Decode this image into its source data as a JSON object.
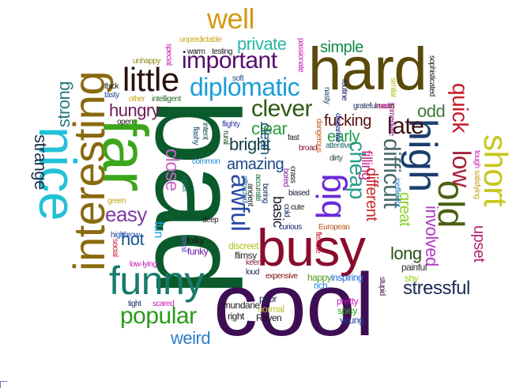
{
  "word_cloud": {
    "words": [
      {
        "text": "bad",
        "color": "#0b5a2b"
      },
      {
        "text": "cool",
        "color": "#3e0e55"
      },
      {
        "text": "hard",
        "color": "#5a4a0a"
      },
      {
        "text": "busy",
        "color": "#8a0c2c"
      },
      {
        "text": "interesting",
        "color": "#8a6a10"
      },
      {
        "text": "far",
        "color": "#3ca61a"
      },
      {
        "text": "nice",
        "color": "#22c1d6"
      },
      {
        "text": "funny",
        "color": "#177a6c"
      },
      {
        "text": "high",
        "color": "#1a3f6e"
      },
      {
        "text": "old",
        "color": "#4a6010"
      },
      {
        "text": "short",
        "color": "#c7c71b"
      },
      {
        "text": "big",
        "color": "#6a2ad8"
      },
      {
        "text": "little",
        "color": "#2a1010"
      },
      {
        "text": "important",
        "color": "#540e6e"
      },
      {
        "text": "diplomatic",
        "color": "#1c9ed8"
      },
      {
        "text": "well",
        "color": "#d49a14"
      },
      {
        "text": "private",
        "color": "#2bb6a6"
      },
      {
        "text": "simple",
        "color": "#0f8a4a"
      },
      {
        "text": "clever",
        "color": "#2a5a10"
      },
      {
        "text": "popular",
        "color": "#2a9a1a"
      },
      {
        "text": "weird",
        "color": "#2c7ec6"
      },
      {
        "text": "stressful",
        "color": "#1a2a56"
      },
      {
        "text": "easy",
        "color": "#7e3aa6"
      },
      {
        "text": "quick",
        "color": "#c51a2a"
      },
      {
        "text": "low",
        "color": "#a8223c"
      },
      {
        "text": "late",
        "color": "#3a0f0f"
      },
      {
        "text": "awful",
        "color": "#2a4aa6"
      },
      {
        "text": "difficult",
        "color": "#4a6a6a"
      },
      {
        "text": "cheap",
        "color": "#2a9e8a"
      },
      {
        "text": "strange",
        "color": "#1e2e4a"
      },
      {
        "text": "strong",
        "color": "#2a7a7a"
      },
      {
        "text": "sure",
        "color": "#3ab61a"
      },
      {
        "text": "amazing",
        "color": "#1a4a8a"
      },
      {
        "text": "bright",
        "color": "#15414a"
      },
      {
        "text": "clear",
        "color": "#2e9e3e"
      },
      {
        "text": "hungry",
        "color": "#6e1a56"
      },
      {
        "text": "close",
        "color": "#c864c8"
      },
      {
        "text": "hot",
        "color": "#1a5a96"
      },
      {
        "text": "fucking",
        "color": "#5a0e0e"
      },
      {
        "text": "early",
        "color": "#1a9a4e"
      },
      {
        "text": "odd",
        "color": "#3e7a3e"
      },
      {
        "text": "long",
        "color": "#2a4e1a"
      },
      {
        "text": "upset",
        "color": "#b0266e"
      },
      {
        "text": "involved",
        "color": "#b33ac4"
      },
      {
        "text": "great",
        "color": "#8ad22a"
      },
      {
        "text": "filling",
        "color": "#c2268a"
      },
      {
        "text": "different",
        "color": "#c8282a"
      },
      {
        "text": "basic",
        "color": "#1a1a2a"
      },
      {
        "text": "clean",
        "color": "#1a4e7a"
      },
      {
        "text": "fun",
        "color": "#1a9ed8"
      },
      {
        "text": "painful",
        "color": "#2a2a2a"
      },
      {
        "text": "shy",
        "color": "#9ad21a"
      },
      {
        "text": "stupid",
        "color": "#4a0e4a"
      },
      {
        "text": "spicy",
        "color": "#2aa61a"
      },
      {
        "text": "young",
        "color": "#1a3e9a"
      },
      {
        "text": "pretty",
        "color": "#c81ab4"
      },
      {
        "text": "normal",
        "color": "#b6c22a"
      },
      {
        "text": "Raven",
        "color": "#1a1a1a"
      },
      {
        "text": "poor",
        "color": "#1a2a4a"
      },
      {
        "text": "right",
        "color": "#1a1a1a"
      },
      {
        "text": "mundane",
        "color": "#1a1a1a"
      },
      {
        "text": "rich",
        "color": "#2a86d6"
      },
      {
        "text": "inspiring",
        "color": "#1a6ad6"
      },
      {
        "text": "happy",
        "color": "#4a9a1a"
      },
      {
        "text": "expensive",
        "color": "#7a0e0e"
      },
      {
        "text": "loud",
        "color": "#1a1a5a"
      },
      {
        "text": "keen",
        "color": "#8a1a4a"
      },
      {
        "text": "flimsy",
        "color": "#2a2a2a"
      },
      {
        "text": "discreet",
        "color": "#b6c21a"
      },
      {
        "text": "folky",
        "color": "#1a1a1a"
      },
      {
        "text": "funky",
        "color": "#6a1aa6"
      },
      {
        "text": "small",
        "color": "#6a6ad6"
      },
      {
        "text": "social",
        "color": "#c81a3a"
      },
      {
        "text": "highbrow",
        "color": "#1a4aa6"
      },
      {
        "text": "low-lying",
        "color": "#c81ab4"
      },
      {
        "text": "tight",
        "color": "#1a2a6a"
      },
      {
        "text": "scared",
        "color": "#c81ab4"
      },
      {
        "text": "deep",
        "color": "#1a1a1a"
      },
      {
        "text": "green",
        "color": "#c7a61a"
      },
      {
        "text": "quiet",
        "color": "#1a6a6a"
      },
      {
        "text": "attracted",
        "color": "#2a6aa6"
      },
      {
        "text": "ancient",
        "color": "#1a1a1a"
      },
      {
        "text": "accurate",
        "color": "#1a6a3a"
      },
      {
        "text": "boring",
        "color": "#1a2a6a"
      },
      {
        "text": "biased",
        "color": "#1a1a3a"
      },
      {
        "text": "cute",
        "color": "#1a1a1a"
      },
      {
        "text": "curious",
        "color": "#1a2a6a"
      },
      {
        "text": "European",
        "color": "#b65a1a"
      },
      {
        "text": "flexible",
        "color": "#c81a3a"
      },
      {
        "text": "cold",
        "color": "#1a2a6a"
      },
      {
        "text": "crass",
        "color": "#1a1a1a"
      },
      {
        "text": "bored",
        "color": "#8a1aa6"
      },
      {
        "text": "fast",
        "color": "#1a1a1a"
      },
      {
        "text": "broad",
        "color": "#8a1a2a"
      },
      {
        "text": "dirty",
        "color": "#2a4a2a"
      },
      {
        "text": "attentive",
        "color": "#1a6a6a"
      },
      {
        "text": "dangerous",
        "color": "#c85a1a"
      },
      {
        "text": "disparate",
        "color": "#1a2a8a"
      },
      {
        "text": "immediate",
        "color": "#8a1a8a"
      },
      {
        "text": "inefficient",
        "color": "#2a86d6"
      },
      {
        "text": "satisfying",
        "color": "#c8a61a"
      },
      {
        "text": "tough",
        "color": "#c81ab4"
      },
      {
        "text": "common",
        "color": "#1a8ad6"
      },
      {
        "text": "rural",
        "color": "#1a4a2a"
      },
      {
        "text": "flashy",
        "color": "#1a4a7a"
      },
      {
        "text": "intent",
        "color": "#1a4a4a"
      },
      {
        "text": "flighty",
        "color": "#3a3aa6"
      },
      {
        "text": "open",
        "color": "#1a1a1a"
      },
      {
        "text": "thick",
        "color": "#1a1a1a"
      },
      {
        "text": "tasty",
        "color": "#1a4a8a"
      },
      {
        "text": "other",
        "color": "#c8a61a"
      },
      {
        "text": "intelligent",
        "color": "#2a6a2a"
      },
      {
        "text": "unhappy",
        "color": "#8a8a1a"
      },
      {
        "text": "special",
        "color": "#c81ab4"
      },
      {
        "text": "warm",
        "color": "#1a1a1a"
      },
      {
        "text": "testing",
        "color": "#1a1a1a"
      },
      {
        "text": "unpredictable",
        "color": "#c8a61a"
      },
      {
        "text": "soft",
        "color": "#1a4a8a"
      },
      {
        "text": "passionate",
        "color": "#c81ab4"
      },
      {
        "text": "nasty",
        "color": "#1a4a6a"
      },
      {
        "text": "routine",
        "color": "#1a1a5a"
      },
      {
        "text": "similar",
        "color": "#b6c21a"
      },
      {
        "text": "sophisticated",
        "color": "#1a1a1a"
      },
      {
        "text": "grateful",
        "color": "#1a2a5a"
      },
      {
        "text": "mean",
        "color": "#5a1a1a"
      },
      {
        "text": "sad",
        "color": "#c81ab4"
      }
    ]
  }
}
